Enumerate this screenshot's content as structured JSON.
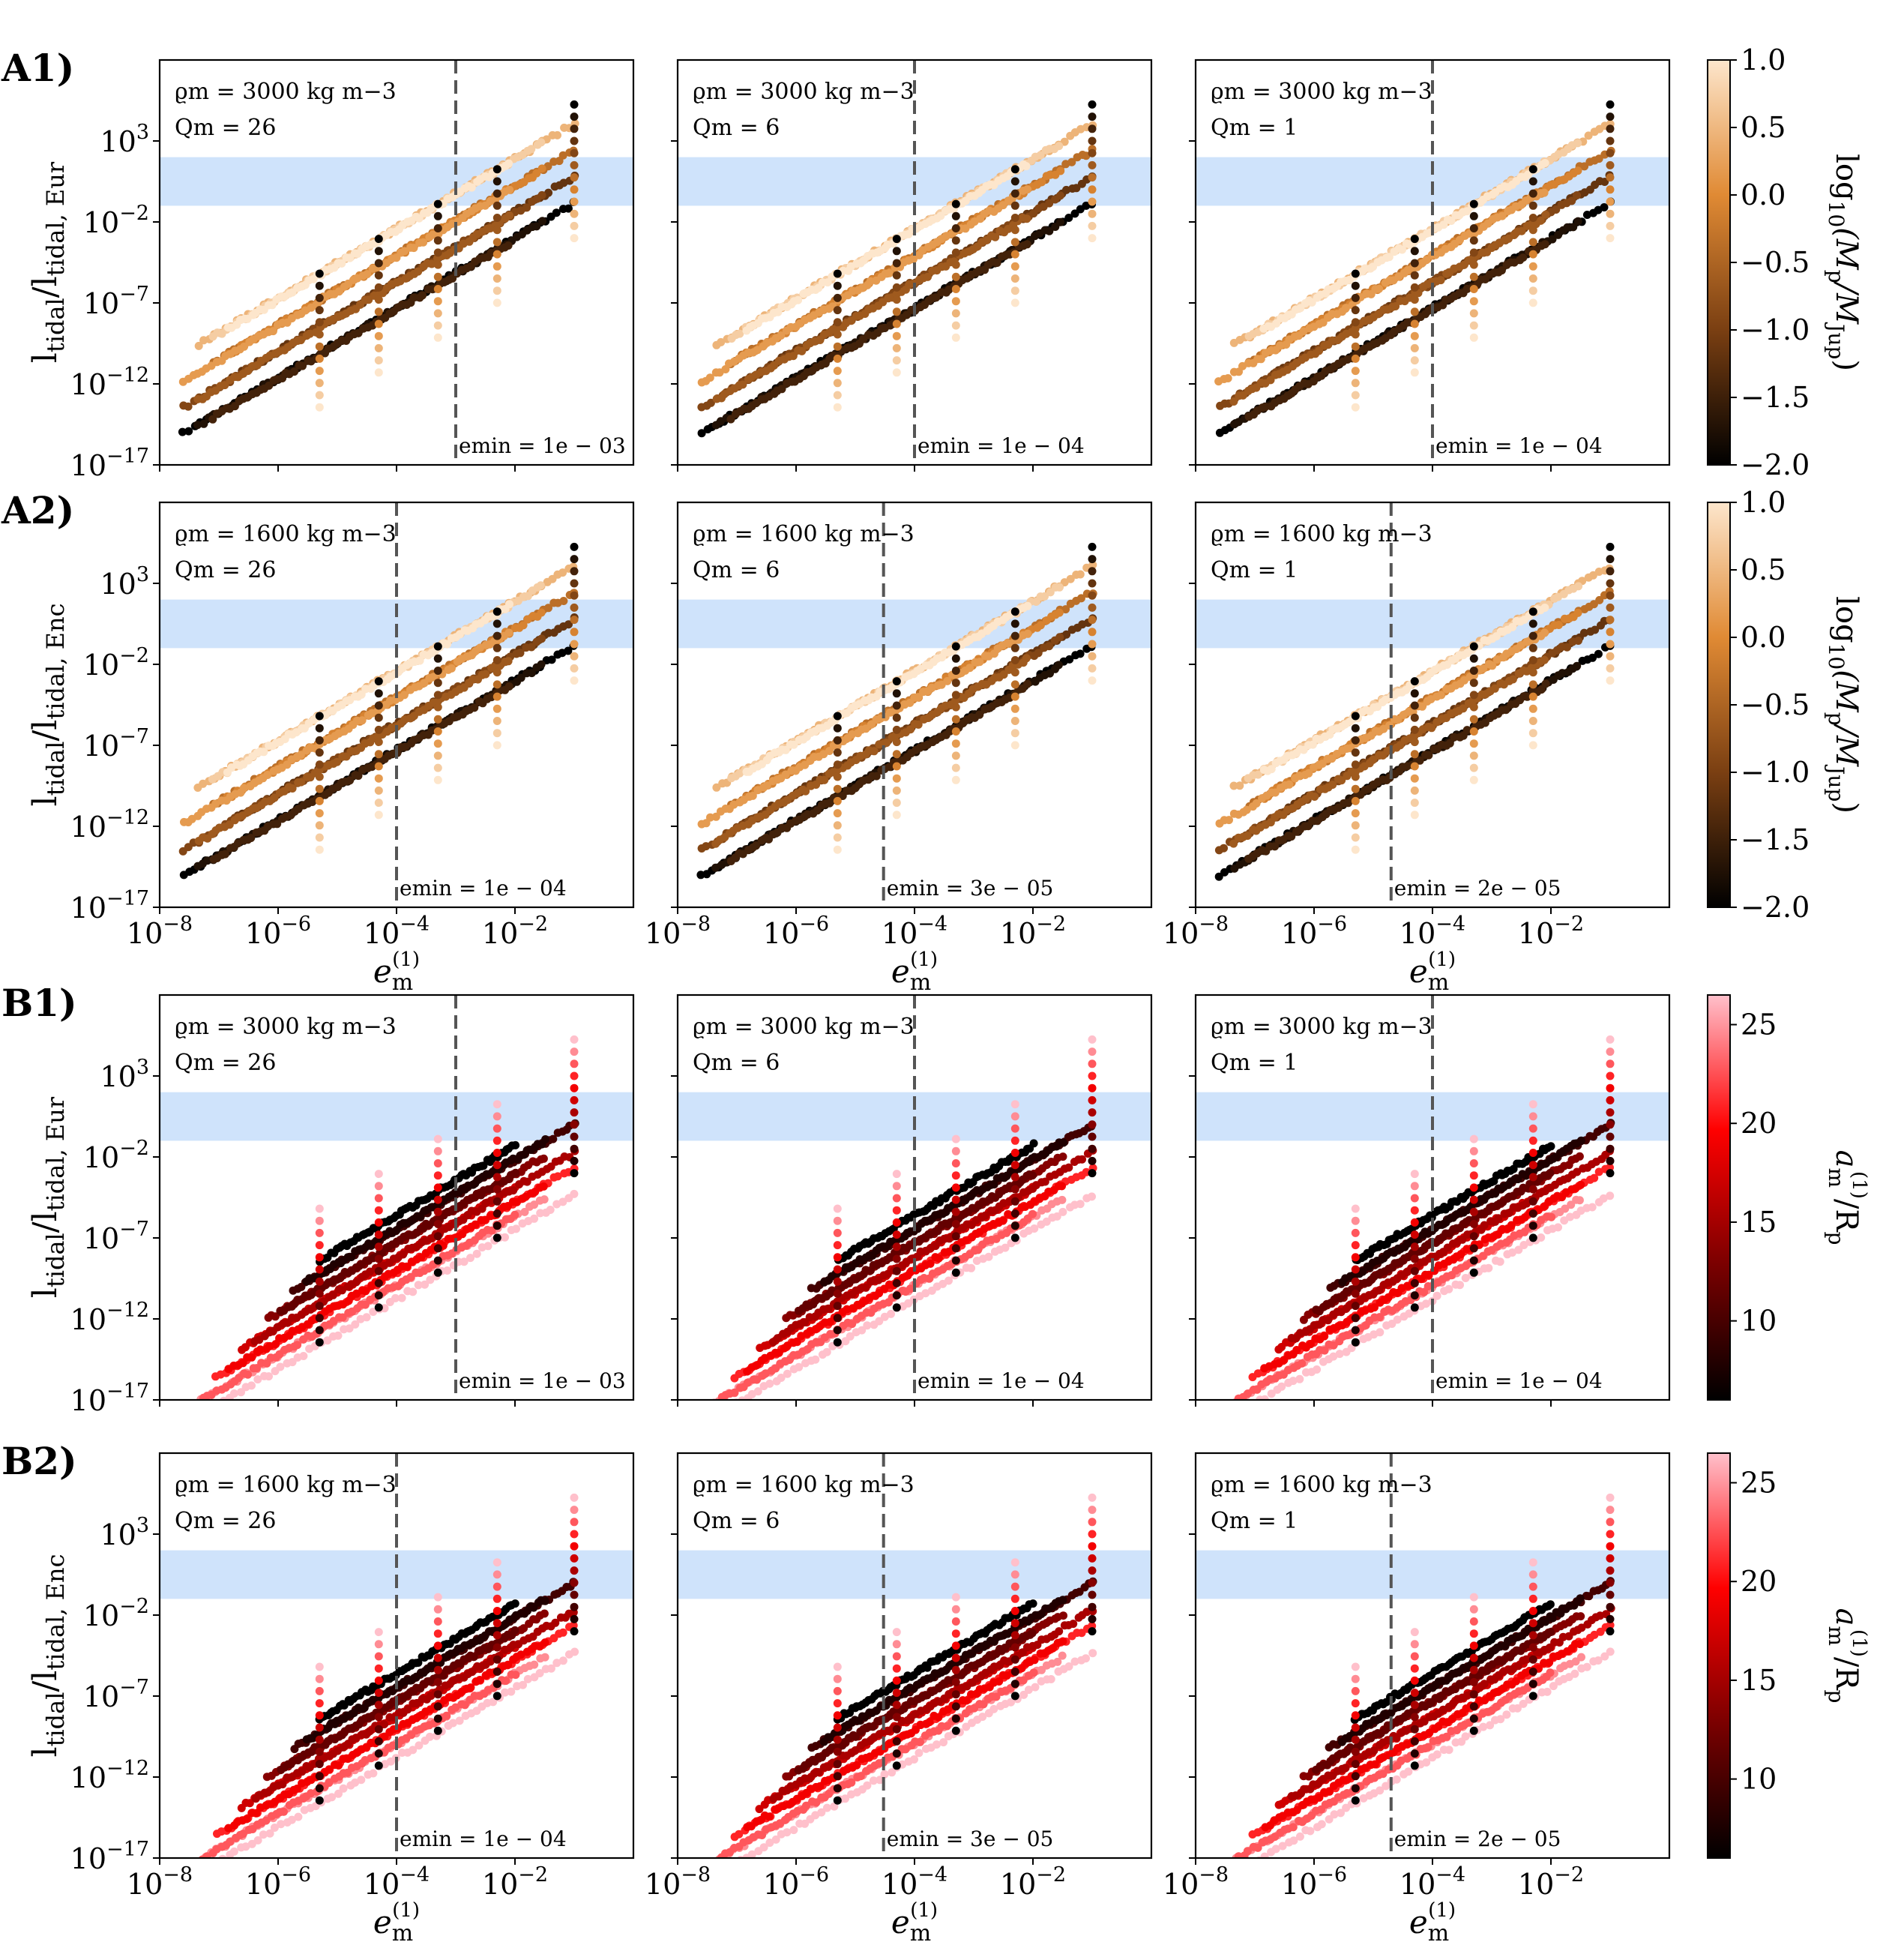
{
  "figure": {
    "row_labels": [
      "A1)",
      "A2)",
      "B1)",
      "B2)"
    ],
    "ylabels": [
      {
        "main": "l",
        "sub": "tidal",
        "mid": "/l",
        "sub2": "tidal, Eur"
      },
      {
        "main": "l",
        "sub": "tidal",
        "mid": "/l",
        "sub2": "tidal, Enc"
      },
      {
        "main": "l",
        "sub": "tidal",
        "mid": "/l",
        "sub2": "tidal, Eur"
      },
      {
        "main": "l",
        "sub": "tidal",
        "mid": "/l",
        "sub2": "tidal, Enc"
      }
    ],
    "xlabel": {
      "main": "e",
      "sub": "m",
      "sup": "(1)"
    },
    "yticks": [
      {
        "base": "10",
        "exp": "3",
        "value": 3
      },
      {
        "base": "10",
        "exp": "−2",
        "value": -2
      },
      {
        "base": "10",
        "exp": "−7",
        "value": -7
      },
      {
        "base": "10",
        "exp": "−12",
        "value": -12
      },
      {
        "base": "10",
        "exp": "−17",
        "value": -17
      }
    ],
    "xticks": [
      {
        "base": "10",
        "exp": "−8",
        "value": -8
      },
      {
        "base": "10",
        "exp": "−6",
        "value": -6
      },
      {
        "base": "10",
        "exp": "−4",
        "value": -4
      },
      {
        "base": "10",
        "exp": "−2",
        "value": -2
      }
    ],
    "colorbars": [
      {
        "label": "log10(Mp/MJup)",
        "label_parts": [
          "log",
          "10",
          "(M",
          "p",
          "/M",
          "Jup",
          ")"
        ],
        "ticks": [
          "1.0",
          "0.5",
          "0.0",
          "−0.5",
          "−1.0",
          "−1.5",
          "−2.0"
        ],
        "range": [
          -2.0,
          1.0
        ],
        "colors": [
          "#000000",
          "#7a3f12",
          "#e08a34",
          "#fde6cc"
        ]
      },
      {
        "label": "log10(Mp/MJup)",
        "label_parts": [
          "log",
          "10",
          "(M",
          "p",
          "/M",
          "Jup",
          ")"
        ],
        "ticks": [
          "1.0",
          "0.5",
          "0.0",
          "−0.5",
          "−1.0",
          "−1.5",
          "−2.0"
        ],
        "range": [
          -2.0,
          1.0
        ],
        "colors": [
          "#000000",
          "#7a3f12",
          "#e08a34",
          "#fde6cc"
        ]
      },
      {
        "label": "a(1)m/Rp",
        "label_parts": [
          "a",
          "m",
          "(1)",
          "/R",
          "p"
        ],
        "ticks": [
          "25",
          "20",
          "15",
          "10"
        ],
        "range": [
          6,
          26.5
        ],
        "colors": [
          "#000000",
          "#7a0000",
          "#ff0000",
          "#ffc0cb"
        ]
      },
      {
        "label": "a(1)m/Rp",
        "label_parts": [
          "a",
          "m",
          "(1)",
          "/R",
          "p"
        ],
        "ticks": [
          "25",
          "20",
          "15",
          "10"
        ],
        "range": [
          6,
          26.5
        ],
        "colors": [
          "#000000",
          "#7a0000",
          "#ff0000",
          "#ffc0cb"
        ]
      }
    ]
  },
  "chart_data": [
    {
      "type": "scatter",
      "row": "A1)",
      "col": 0,
      "rho_label": "ϱm = 3000 kg m−3",
      "Q_label": "Qm = 26",
      "emin_label": "emin = 1e − 03",
      "emin": 0.001,
      "band": [
        0.1,
        100
      ],
      "xscale": "log",
      "yscale": "log",
      "xlim": [
        1e-08,
        1
      ],
      "ylim": [
        1e-17,
        100000000.0
      ],
      "color_var": "mass"
    },
    {
      "type": "scatter",
      "row": "A1)",
      "col": 1,
      "rho_label": "ϱm = 3000 kg m−3",
      "Q_label": "Qm = 6",
      "emin_label": "emin = 1e − 04",
      "emin": 0.0001,
      "band": [
        0.1,
        100
      ],
      "xscale": "log",
      "yscale": "log",
      "xlim": [
        1e-08,
        1
      ],
      "ylim": [
        1e-17,
        100000000.0
      ],
      "color_var": "mass"
    },
    {
      "type": "scatter",
      "row": "A1)",
      "col": 2,
      "rho_label": "ϱm = 3000 kg m−3",
      "Q_label": "Qm = 1",
      "emin_label": "emin = 1e − 04",
      "emin": 0.0001,
      "band": [
        0.1,
        100
      ],
      "xscale": "log",
      "yscale": "log",
      "xlim": [
        1e-08,
        1
      ],
      "ylim": [
        1e-17,
        100000000.0
      ],
      "color_var": "mass"
    },
    {
      "type": "scatter",
      "row": "A2)",
      "col": 0,
      "rho_label": "ϱm = 1600 kg m−3",
      "Q_label": "Qm = 26",
      "emin_label": "emin = 1e − 04",
      "emin": 0.0001,
      "band": [
        0.1,
        100
      ],
      "xscale": "log",
      "yscale": "log",
      "xlim": [
        1e-08,
        1
      ],
      "ylim": [
        1e-17,
        100000000.0
      ],
      "color_var": "mass"
    },
    {
      "type": "scatter",
      "row": "A2)",
      "col": 1,
      "rho_label": "ϱm = 1600 kg m−3",
      "Q_label": "Qm = 6",
      "emin_label": "emin = 3e − 05",
      "emin": 3e-05,
      "band": [
        0.1,
        100
      ],
      "xscale": "log",
      "yscale": "log",
      "xlim": [
        1e-08,
        1
      ],
      "ylim": [
        1e-17,
        100000000.0
      ],
      "color_var": "mass"
    },
    {
      "type": "scatter",
      "row": "A2)",
      "col": 2,
      "rho_label": "ϱm = 1600 kg m−3",
      "Q_label": "Qm = 1",
      "emin_label": "emin = 2e − 05",
      "emin": 2e-05,
      "band": [
        0.1,
        100
      ],
      "xscale": "log",
      "yscale": "log",
      "xlim": [
        1e-08,
        1
      ],
      "ylim": [
        1e-17,
        100000000.0
      ],
      "color_var": "mass"
    },
    {
      "type": "scatter",
      "row": "B1)",
      "col": 0,
      "rho_label": "ϱm = 3000 kg m−3",
      "Q_label": "Qm = 26",
      "emin_label": "emin = 1e − 03",
      "emin": 0.001,
      "band": [
        0.1,
        100
      ],
      "xscale": "log",
      "yscale": "log",
      "xlim": [
        1e-08,
        1
      ],
      "ylim": [
        1e-17,
        100000000.0
      ],
      "color_var": "distance"
    },
    {
      "type": "scatter",
      "row": "B1)",
      "col": 1,
      "rho_label": "ϱm = 3000 kg m−3",
      "Q_label": "Qm = 6",
      "emin_label": "emin = 1e − 04",
      "emin": 0.0001,
      "band": [
        0.1,
        100
      ],
      "xscale": "log",
      "yscale": "log",
      "xlim": [
        1e-08,
        1
      ],
      "ylim": [
        1e-17,
        100000000.0
      ],
      "color_var": "distance"
    },
    {
      "type": "scatter",
      "row": "B1)",
      "col": 2,
      "rho_label": "ϱm = 3000 kg m−3",
      "Q_label": "Qm = 1",
      "emin_label": "emin = 1e − 04",
      "emin": 0.0001,
      "band": [
        0.1,
        100
      ],
      "xscale": "log",
      "yscale": "log",
      "xlim": [
        1e-08,
        1
      ],
      "ylim": [
        1e-17,
        100000000.0
      ],
      "color_var": "distance"
    },
    {
      "type": "scatter",
      "row": "B2)",
      "col": 0,
      "rho_label": "ϱm = 1600 kg m−3",
      "Q_label": "Qm = 26",
      "emin_label": "emin = 1e − 04",
      "emin": 0.0001,
      "band": [
        0.1,
        100
      ],
      "xscale": "log",
      "yscale": "log",
      "xlim": [
        1e-08,
        1
      ],
      "ylim": [
        1e-17,
        100000000.0
      ],
      "color_var": "distance"
    },
    {
      "type": "scatter",
      "row": "B2)",
      "col": 1,
      "rho_label": "ϱm = 1600 kg m−3",
      "Q_label": "Qm = 6",
      "emin_label": "emin = 3e − 05",
      "emin": 3e-05,
      "band": [
        0.1,
        100
      ],
      "xscale": "log",
      "yscale": "log",
      "xlim": [
        1e-08,
        1
      ],
      "ylim": [
        1e-17,
        100000000.0
      ],
      "color_var": "distance"
    },
    {
      "type": "scatter",
      "row": "B2)",
      "col": 2,
      "rho_label": "ϱm = 1600 kg m−3",
      "Q_label": "Qm = 1",
      "emin_label": "emin = 2e − 05",
      "emin": 2e-05,
      "band": [
        0.1,
        100
      ],
      "xscale": "log",
      "yscale": "log",
      "xlim": [
        1e-08,
        1
      ],
      "ylim": [
        1e-17,
        100000000.0
      ],
      "color_var": "distance"
    }
  ]
}
